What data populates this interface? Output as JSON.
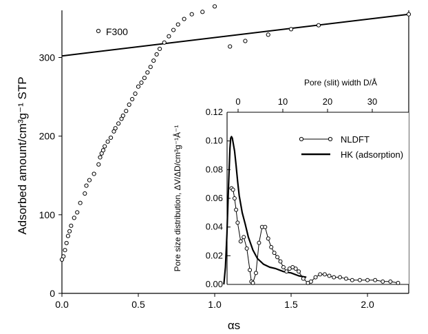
{
  "chart_data": [
    {
      "type": "scatter",
      "role": "main",
      "ylabel": "Adsorbed amount/cm³g⁻¹ STP",
      "xlabel": "αs",
      "xlim": [
        0,
        2.27
      ],
      "ylim": [
        0,
        360
      ],
      "x_ticks": [
        0.0,
        0.5,
        1.0,
        1.5,
        2.0
      ],
      "x_tick_labels": [
        "0.0",
        "0.5",
        "1.0",
        "1.5",
        "2.0"
      ],
      "y_ticks": [
        0,
        100,
        200,
        300
      ],
      "y_tick_labels": [
        "0",
        "100",
        "200",
        "300"
      ],
      "series": [
        {
          "name": "F300",
          "marker": "open-circle",
          "x": [
            0.0,
            0.01,
            0.02,
            0.03,
            0.04,
            0.05,
            0.06,
            0.08,
            0.1,
            0.12,
            0.15,
            0.16,
            0.18,
            0.21,
            0.24,
            0.25,
            0.26,
            0.27,
            0.28,
            0.3,
            0.32,
            0.34,
            0.35,
            0.37,
            0.39,
            0.4,
            0.42,
            0.44,
            0.46,
            0.48,
            0.5,
            0.52,
            0.54,
            0.56,
            0.58,
            0.6,
            0.62,
            0.64,
            0.67,
            0.7,
            0.73,
            0.76,
            0.8,
            0.85,
            0.92,
            1.0,
            1.1,
            1.2,
            1.35,
            1.5,
            1.68,
            2.27
          ],
          "y": [
            43,
            47,
            55,
            64,
            73,
            79,
            86,
            96,
            103,
            115,
            127,
            137,
            144,
            152,
            164,
            173,
            178,
            182,
            187,
            193,
            198,
            206,
            210,
            216,
            222,
            226,
            232,
            240,
            247,
            254,
            263,
            268,
            274,
            281,
            288,
            296,
            304,
            311,
            319,
            327,
            335,
            342,
            349,
            355,
            358,
            365,
            314,
            321,
            329,
            336,
            341,
            355
          ]
        },
        {
          "name": "",
          "type": "line",
          "x": [
            0.0,
            2.27
          ],
          "y": [
            302,
            355
          ]
        }
      ],
      "annotation": "F300"
    },
    {
      "type": "line",
      "role": "inset",
      "ylabel": "Pore size distribution,  ΔV/ΔD/cm³g⁻¹Å⁻¹",
      "xlabel_top": "Pore (slit) width D/Å",
      "ylim": [
        0,
        0.12
      ],
      "y_ticks": [
        0.0,
        0.02,
        0.04,
        0.06,
        0.08,
        0.1,
        0.12
      ],
      "y_tick_labels": [
        "0.00",
        "0.02",
        "0.04",
        "0.06",
        "0.08",
        "0.10",
        "0.12"
      ],
      "x_top_ticks": [
        0,
        10,
        20,
        30
      ],
      "x_top_tick_labels": [
        "0",
        "10",
        "20",
        "30"
      ],
      "xlim_bottom_alpha": [
        1.06,
        2.27
      ],
      "legend": {
        "placement": "top-right",
        "entries": [
          "NLDFT",
          "HK (adsorption)"
        ]
      },
      "series": [
        {
          "name": "NLDFT",
          "marker": "open-circle",
          "x": [
            1.11,
            1.12,
            1.13,
            1.14,
            1.15,
            1.17,
            1.19,
            1.21,
            1.23,
            1.24,
            1.25,
            1.27,
            1.29,
            1.31,
            1.33,
            1.35,
            1.37,
            1.39,
            1.41,
            1.43,
            1.45,
            1.47,
            1.49,
            1.51,
            1.53,
            1.55,
            1.58,
            1.61,
            1.63,
            1.66,
            1.69,
            1.72,
            1.75,
            1.78,
            1.82,
            1.86,
            1.9,
            1.95,
            2.0,
            2.05,
            2.1,
            2.15,
            2.2
          ],
          "y": [
            0.067,
            0.066,
            0.06,
            0.052,
            0.043,
            0.03,
            0.033,
            0.025,
            0.01,
            0.002,
            0.001,
            0.008,
            0.029,
            0.04,
            0.04,
            0.032,
            0.026,
            0.022,
            0.019,
            0.016,
            0.012,
            0.009,
            0.011,
            0.012,
            0.011,
            0.009,
            0.004,
            0.001,
            0.002,
            0.005,
            0.007,
            0.007,
            0.006,
            0.005,
            0.005,
            0.004,
            0.003,
            0.003,
            0.003,
            0.003,
            0.002,
            0.002,
            0.001
          ]
        },
        {
          "name": "HK (adsorption)",
          "marker": "none",
          "x": [
            1.06,
            1.07,
            1.08,
            1.09,
            1.1,
            1.105,
            1.11,
            1.115,
            1.12,
            1.13,
            1.14,
            1.15,
            1.16,
            1.18,
            1.2,
            1.22,
            1.25,
            1.28,
            1.32,
            1.36,
            1.4,
            1.45,
            1.5,
            1.55,
            1.6
          ],
          "y": [
            0.0,
            0.012,
            0.035,
            0.067,
            0.095,
            0.102,
            0.103,
            0.102,
            0.099,
            0.093,
            0.083,
            0.072,
            0.062,
            0.05,
            0.042,
            0.033,
            0.024,
            0.018,
            0.014,
            0.012,
            0.011,
            0.009,
            0.008,
            0.006,
            0.005
          ]
        }
      ]
    }
  ]
}
